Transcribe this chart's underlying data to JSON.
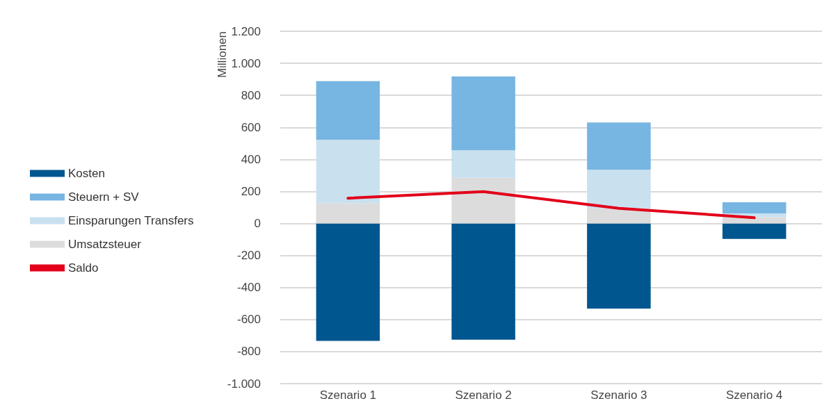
{
  "chart_data": {
    "type": "bar",
    "stacked": true,
    "ylabel": "Millionen",
    "categories": [
      "Szenario 1",
      "Szenario 2",
      "Szenario 3",
      "Szenario 4"
    ],
    "series": [
      {
        "name": "Kosten",
        "color": "#00568f",
        "values": [
          -733,
          -725,
          -531,
          -96
        ]
      },
      {
        "name": "Umsatzsteuer",
        "color": "#dcdcdc",
        "values": [
          126,
          285,
          95,
          39
        ]
      },
      {
        "name": "Einsparungen Transfers",
        "color": "#c9e0ef",
        "values": [
          397,
          172,
          240,
          24
        ]
      },
      {
        "name": "Steuern + SV",
        "color": "#77b5e2",
        "values": [
          366,
          461,
          296,
          70
        ]
      },
      {
        "name": "Saldo",
        "type": "line",
        "color": "#e2001a",
        "values": [
          158,
          199,
          95,
          36
        ]
      }
    ],
    "ylim": [
      -1000,
      1200
    ],
    "yticks": [
      {
        "value": -1000,
        "label": "-1.000"
      },
      -800,
      -600,
      -400,
      -200,
      0,
      200,
      400,
      600,
      800,
      {
        "value": 1000,
        "label": "1.000"
      },
      {
        "value": 1200,
        "label": "1.200"
      }
    ],
    "grid": "y",
    "legend": "left",
    "marker": "none",
    "line_style": "solid"
  }
}
